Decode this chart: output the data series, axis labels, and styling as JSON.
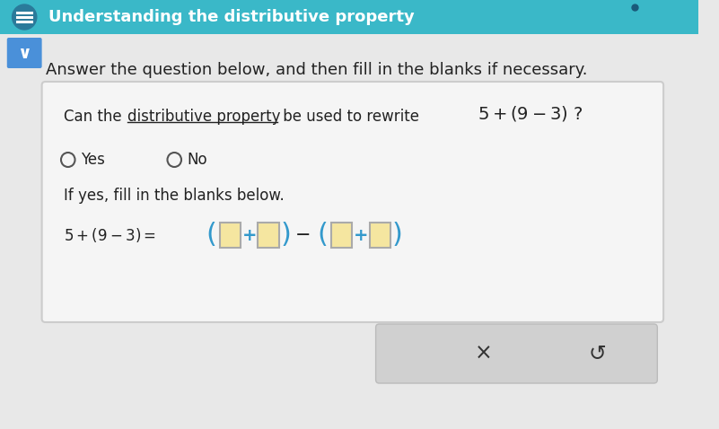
{
  "title": "Understanding the distributive property",
  "title_bg": "#3ab8c8",
  "title_text_color": "#ffffff",
  "body_bg": "#e8e8e8",
  "card_bg": "#f5f5f5",
  "card_border": "#cccccc",
  "chevron_bg": "#4a90d9",
  "chevron_color": "#ffffff",
  "instruction_text": "Answer the question below, and then fill in the blanks if necessary.",
  "instruction_color": "#222222",
  "yes_label": "Yes",
  "no_label": "No",
  "if_yes_text": "If yes, fill in the blanks below.",
  "blank_fill": "#f5e6a0",
  "plus_color": "#3399cc",
  "paren_color": "#3399cc",
  "bottom_bar_bg": "#d0d0d0",
  "x_symbol": "×",
  "undo_symbol": "↺",
  "figsize": [
    8.01,
    4.78
  ],
  "dpi": 100
}
